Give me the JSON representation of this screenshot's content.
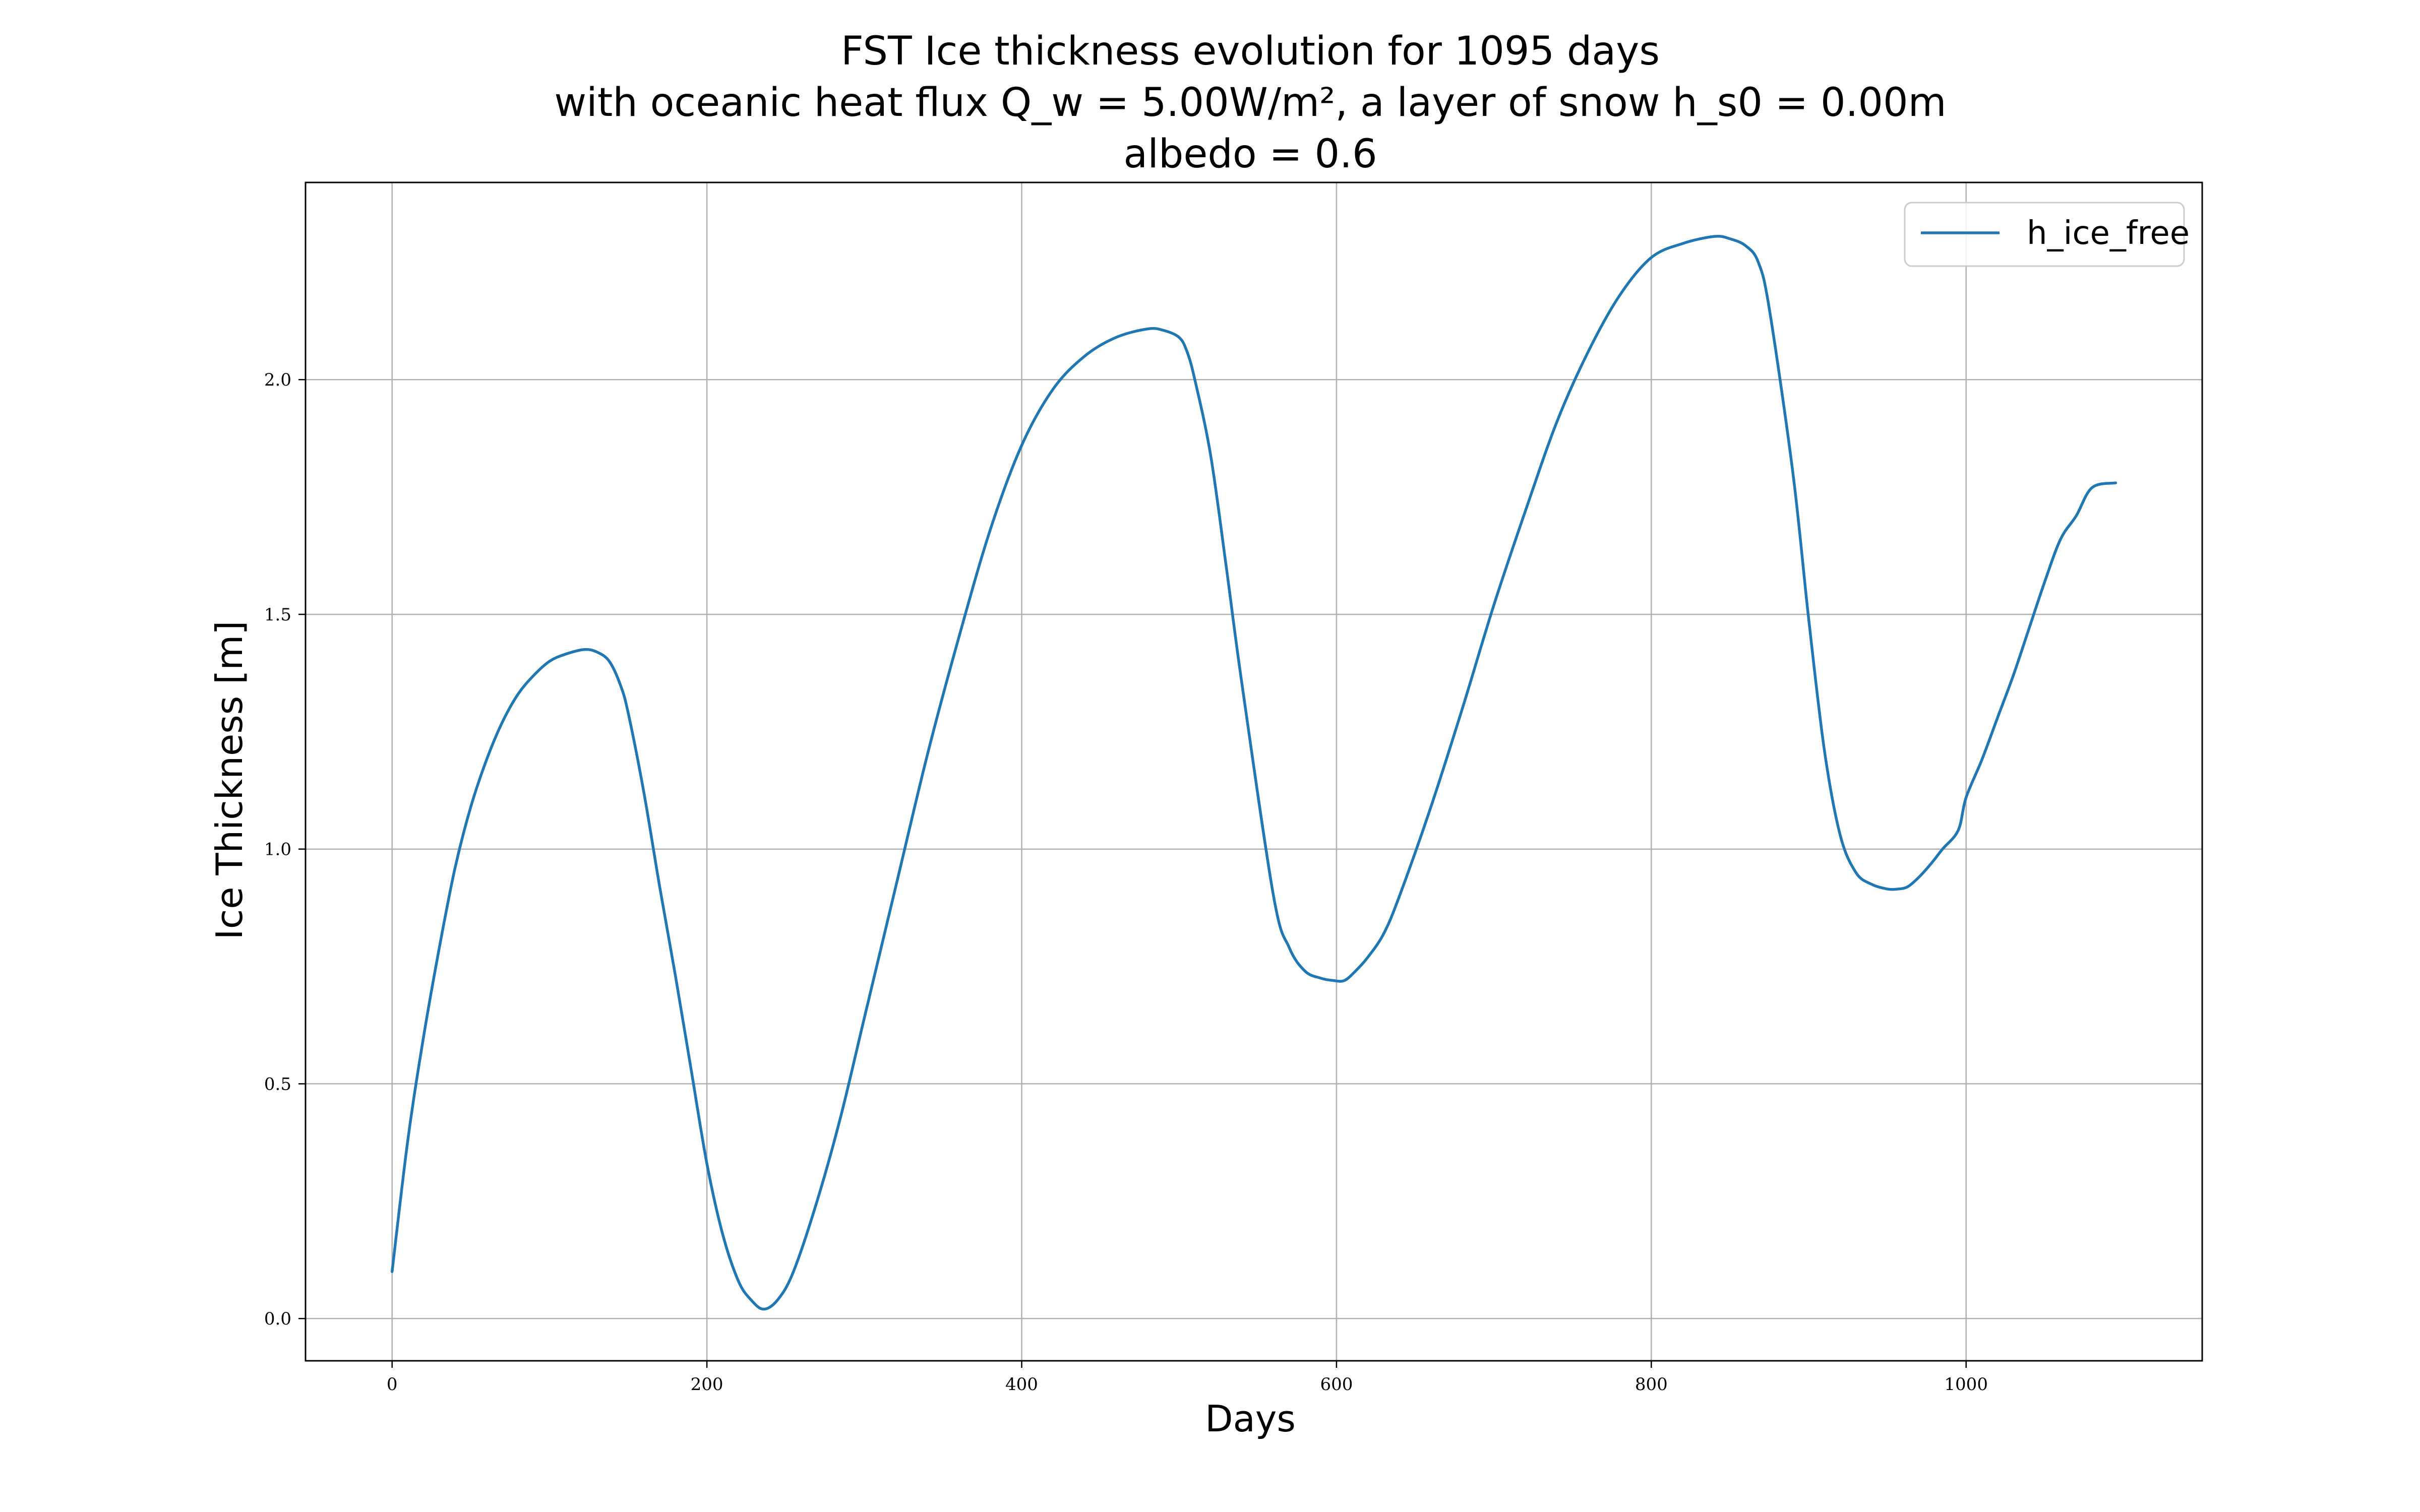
{
  "chart_data": {
    "type": "line",
    "title": [
      "FST Ice thickness evolution for 1095 days",
      "with oceanic heat flux Q_w = 5.00W/m², a layer of snow h_s0 = 0.00m",
      "albedo = 0.6"
    ],
    "xlabel": "Days",
    "ylabel": "Ice Thickness [m]",
    "xlim": [
      -55,
      1150
    ],
    "ylim": [
      -0.09,
      2.42
    ],
    "xticks": [
      0,
      200,
      400,
      600,
      800,
      1000
    ],
    "xtick_labels": [
      "0",
      "200",
      "400",
      "600",
      "800",
      "1000"
    ],
    "yticks": [
      0.0,
      0.5,
      1.0,
      1.5,
      2.0
    ],
    "ytick_labels": [
      "0.0",
      "0.5",
      "1.0",
      "1.5",
      "2.0"
    ],
    "grid": true,
    "legend": {
      "position": "top-right",
      "entries": [
        "h_ice_free"
      ]
    },
    "series": [
      {
        "name": "h_ice_free",
        "color": "#1f77b4",
        "x": [
          0,
          10,
          20,
          30,
          40,
          50,
          60,
          70,
          80,
          90,
          100,
          110,
          122,
          130,
          138,
          145,
          150,
          160,
          170,
          180,
          190,
          200,
          210,
          220,
          228,
          236,
          245,
          255,
          270,
          285,
          300,
          320,
          340,
          360,
          380,
          400,
          420,
          440,
          460,
          480,
          490,
          500,
          505,
          510,
          520,
          530,
          540,
          560,
          570,
          580,
          590,
          598,
          605,
          612,
          620,
          630,
          640,
          660,
          680,
          700,
          720,
          740,
          760,
          780,
          800,
          820,
          840,
          850,
          860,
          868,
          875,
          890,
          900,
          910,
          920,
          930,
          940,
          950,
          957,
          963,
          970,
          978,
          985,
          995,
          1000,
          1010,
          1020,
          1030,
          1040,
          1050,
          1060,
          1070,
          1080,
          1095
        ],
        "y": [
          0.1,
          0.38,
          0.6,
          0.79,
          0.96,
          1.09,
          1.19,
          1.27,
          1.33,
          1.37,
          1.4,
          1.415,
          1.425,
          1.42,
          1.4,
          1.35,
          1.29,
          1.12,
          0.92,
          0.73,
          0.53,
          0.33,
          0.18,
          0.08,
          0.04,
          0.02,
          0.04,
          0.1,
          0.25,
          0.43,
          0.64,
          0.92,
          1.2,
          1.45,
          1.68,
          1.86,
          1.98,
          2.05,
          2.09,
          2.108,
          2.105,
          2.09,
          2.06,
          2.0,
          1.84,
          1.6,
          1.35,
          0.9,
          0.79,
          0.74,
          0.725,
          0.72,
          0.72,
          0.74,
          0.77,
          0.82,
          0.9,
          1.09,
          1.3,
          1.52,
          1.72,
          1.91,
          2.06,
          2.18,
          2.26,
          2.29,
          2.305,
          2.3,
          2.285,
          2.25,
          2.15,
          1.8,
          1.49,
          1.21,
          1.03,
          0.95,
          0.925,
          0.915,
          0.915,
          0.92,
          0.94,
          0.97,
          1.0,
          1.04,
          1.11,
          1.19,
          1.28,
          1.37,
          1.47,
          1.57,
          1.66,
          1.71,
          1.77,
          1.78
        ]
      }
    ]
  }
}
